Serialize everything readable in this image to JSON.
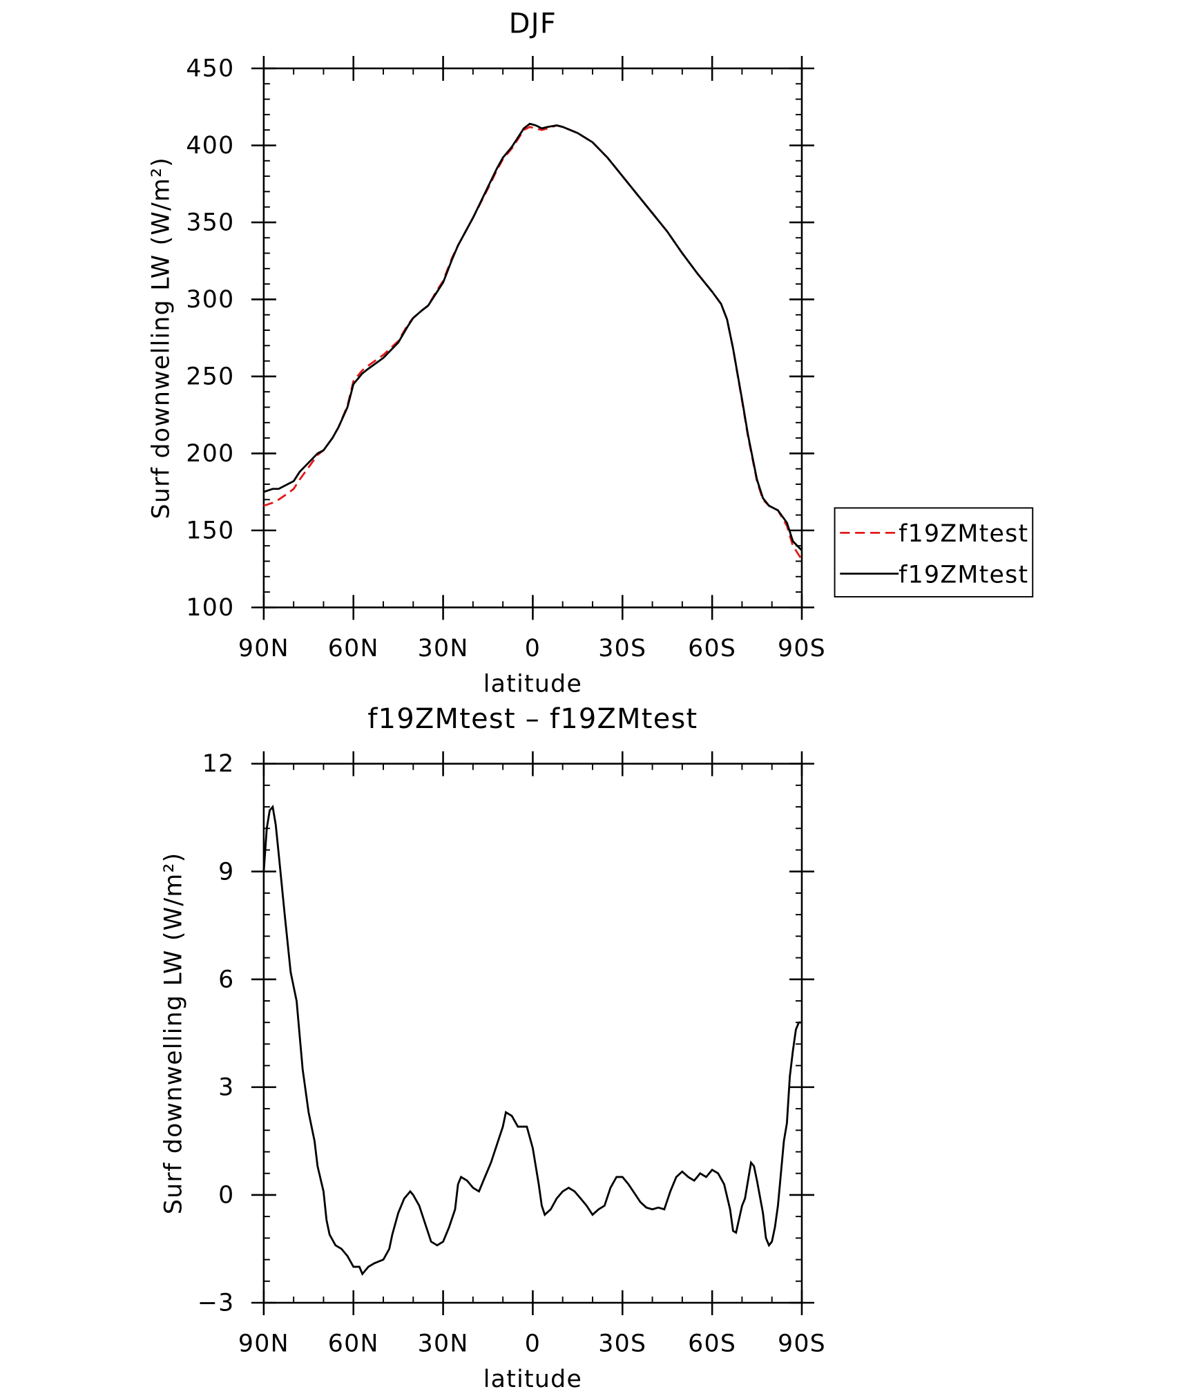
{
  "chart_data": [
    {
      "type": "line",
      "title": "DJF",
      "x_label": "latitude",
      "y_label": "Surf downwelling LW (W/m²)",
      "xlim": [
        90,
        -90
      ],
      "xticks": [
        {
          "value": 90,
          "label": "90N"
        },
        {
          "value": 60,
          "label": "60N"
        },
        {
          "value": 30,
          "label": "30N"
        },
        0,
        {
          "value": -30,
          "label": "30S"
        },
        {
          "value": -60,
          "label": "60S"
        },
        {
          "value": -90,
          "label": "90S"
        }
      ],
      "ylim": [
        100,
        450
      ],
      "yticks": [
        100,
        150,
        200,
        250,
        300,
        350,
        400,
        450
      ],
      "legend": "right",
      "x": [
        90,
        87,
        85,
        82,
        80,
        78,
        75,
        72,
        70,
        67,
        65,
        62,
        60,
        57,
        55,
        50,
        45,
        42,
        40,
        37,
        35,
        32,
        30,
        27,
        25,
        20,
        15,
        12,
        10,
        7,
        5,
        3,
        1,
        -1,
        -3,
        -5,
        -8,
        -10,
        -15,
        -20,
        -25,
        -30,
        -35,
        -40,
        -45,
        -50,
        -55,
        -60,
        -63,
        -65,
        -67,
        -70,
        -72,
        -75,
        -77,
        -79,
        -82,
        -85,
        -87,
        -90
      ],
      "series": [
        {
          "name": "f19ZMtest",
          "color": "#e31a1c",
          "dash": true,
          "values": [
            166,
            168,
            170,
            174,
            177,
            183,
            191,
            199,
            202,
            210,
            217,
            231,
            247,
            254,
            257,
            264,
            273,
            283,
            288,
            293,
            296,
            306,
            312,
            327,
            335,
            353,
            372,
            384,
            391,
            398,
            404,
            410,
            412,
            411,
            410,
            411,
            413,
            412,
            408,
            402,
            392,
            380,
            368,
            356,
            344,
            330,
            317,
            305,
            297,
            287,
            268,
            234,
            211,
            182,
            170,
            166,
            163,
            153,
            140,
            131
          ]
        },
        {
          "name": "f19ZMtest",
          "color": "#000000",
          "dash": false,
          "values": [
            175,
            177,
            177,
            180,
            182,
            188,
            194,
            200,
            202,
            210,
            217,
            230,
            245,
            252,
            255,
            262,
            272,
            282,
            288,
            293,
            296,
            305,
            311,
            326,
            335,
            353,
            373,
            385,
            392,
            399,
            405,
            411,
            414,
            413,
            411,
            412,
            413,
            412,
            408,
            402,
            392,
            380,
            368,
            356,
            344,
            330,
            317,
            305,
            297,
            287,
            268,
            235,
            212,
            183,
            171,
            166,
            163,
            155,
            143,
            137
          ]
        }
      ]
    },
    {
      "type": "line",
      "title": "f19ZMtest – f19ZMtest",
      "x_label": "latitude",
      "y_label": "Surf downwelling LW (W/m²)",
      "xlim": [
        90,
        -90
      ],
      "xticks": [
        {
          "value": 90,
          "label": "90N"
        },
        {
          "value": 60,
          "label": "60N"
        },
        {
          "value": 30,
          "label": "30N"
        },
        0,
        {
          "value": -30,
          "label": "30S"
        },
        {
          "value": -60,
          "label": "60S"
        },
        {
          "value": -90,
          "label": "90S"
        }
      ],
      "ylim": [
        -3,
        12
      ],
      "yticks": [
        {
          "value": -3,
          "label": "−3"
        },
        0,
        3,
        6,
        9,
        12
      ],
      "x": [
        90,
        89,
        88,
        87,
        86,
        85,
        83,
        81,
        79,
        77,
        75,
        73,
        72,
        70,
        69,
        68,
        66,
        64,
        62,
        60,
        58,
        57,
        55,
        53,
        50,
        48,
        47,
        45,
        43,
        41,
        40,
        38,
        36,
        34,
        32,
        30,
        28,
        26,
        25,
        24,
        22,
        20,
        18,
        16,
        14,
        12,
        10,
        9,
        7,
        5,
        3,
        2,
        0,
        -2,
        -3,
        -4,
        -6,
        -8,
        -10,
        -12,
        -14,
        -16,
        -18,
        -20,
        -22,
        -24,
        -26,
        -28,
        -30,
        -32,
        -34,
        -36,
        -38,
        -40,
        -42,
        -44,
        -46,
        -48,
        -50,
        -52,
        -54,
        -56,
        -58,
        -60,
        -62,
        -64,
        -66,
        -67,
        -68,
        -70,
        -71,
        -72,
        -73,
        -74,
        -75,
        -77,
        -78,
        -79,
        -80,
        -81,
        -82,
        -84,
        -85,
        -86,
        -87,
        -88,
        -89,
        -90
      ],
      "series": [
        {
          "color": "#000000",
          "values": [
            9,
            10.2,
            10.7,
            10.8,
            10.3,
            9.5,
            7.8,
            6.2,
            5.4,
            3.5,
            2.3,
            1.5,
            0.8,
            0.1,
            -0.7,
            -1.1,
            -1.4,
            -1.5,
            -1.7,
            -2.0,
            -2.0,
            -2.2,
            -2.0,
            -1.9,
            -1.8,
            -1.5,
            -1.1,
            -0.5,
            -0.1,
            0.1,
            0.0,
            -0.3,
            -0.8,
            -1.3,
            -1.4,
            -1.3,
            -0.9,
            -0.4,
            0.3,
            0.5,
            0.4,
            0.2,
            0.1,
            0.5,
            0.9,
            1.4,
            1.9,
            2.3,
            2.2,
            1.9,
            1.9,
            1.9,
            1.3,
            0.3,
            -0.3,
            -0.55,
            -0.4,
            -0.1,
            0.1,
            0.2,
            0.1,
            -0.1,
            -0.3,
            -0.55,
            -0.4,
            -0.3,
            0.2,
            0.5,
            0.5,
            0.3,
            0.05,
            -0.2,
            -0.35,
            -0.4,
            -0.35,
            -0.4,
            0.1,
            0.5,
            0.65,
            0.5,
            0.4,
            0.6,
            0.5,
            0.7,
            0.6,
            0.3,
            -0.4,
            -1.0,
            -1.05,
            -0.3,
            -0.1,
            0.4,
            0.9,
            0.8,
            0.4,
            -0.5,
            -1.2,
            -1.4,
            -1.3,
            -0.9,
            -0.3,
            1.5,
            2.0,
            3.3,
            4.0,
            4.6,
            4.8,
            4.8
          ]
        }
      ]
    }
  ]
}
